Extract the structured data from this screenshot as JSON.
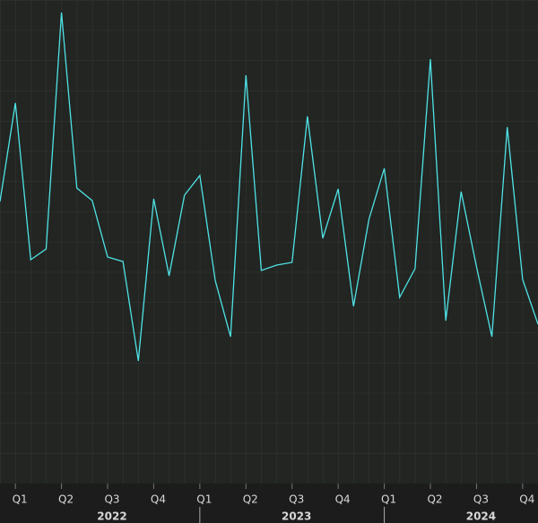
{
  "chart_data": {
    "type": "line",
    "x": [
      0,
      1,
      2,
      3,
      4,
      5,
      6,
      7,
      8,
      9,
      10,
      11,
      12,
      13,
      14,
      15,
      16,
      17,
      18,
      19,
      20,
      21,
      22,
      23,
      24,
      25,
      26,
      27,
      28,
      29,
      30,
      31,
      32,
      33,
      34,
      35
    ],
    "series": [
      {
        "color": "#4fe3e6",
        "values": [
          315,
          425,
          250,
          262,
          526,
          330,
          316,
          253,
          248,
          137,
          318,
          232,
          322,
          344,
          227,
          164,
          456,
          238,
          244,
          247,
          410,
          274,
          329,
          198,
          295,
          352,
          208,
          240,
          474,
          182,
          326,
          242,
          164,
          398,
          228,
          178
        ]
      }
    ],
    "xlim": [
      0,
      35
    ],
    "ylim": [
      0,
      540
    ],
    "xticks": [
      {
        "value": 1,
        "label": "Q1"
      },
      {
        "value": 4,
        "label": "Q2"
      },
      {
        "value": 7,
        "label": "Q3"
      },
      {
        "value": 10,
        "label": "Q4"
      },
      {
        "value": 13,
        "label": "Q1"
      },
      {
        "value": 16,
        "label": "Q2"
      },
      {
        "value": 19,
        "label": "Q3"
      },
      {
        "value": 22,
        "label": "Q4"
      },
      {
        "value": 25,
        "label": "Q1"
      },
      {
        "value": 28,
        "label": "Q2"
      },
      {
        "value": 31,
        "label": "Q3"
      },
      {
        "value": 34,
        "label": "Q4"
      }
    ],
    "year_labels": [
      {
        "value": 7,
        "label": "2022"
      },
      {
        "value": 19,
        "label": "2023"
      },
      {
        "value": 31,
        "label": "2024"
      }
    ],
    "year_bounds": [
      13,
      25
    ]
  }
}
